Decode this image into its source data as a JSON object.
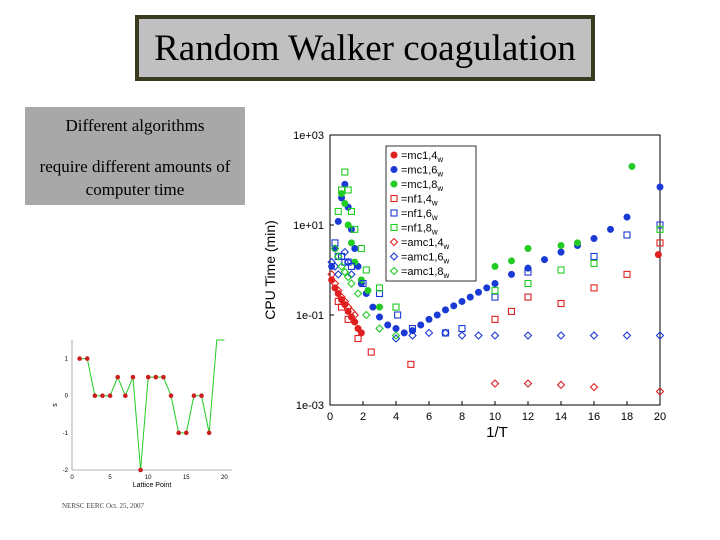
{
  "slide": {
    "title": "Random Walker coagulation",
    "description_line1": "Different algorithms",
    "description_line2": "require different amounts of computer time",
    "footer": "NERSC EERC Oct. 25, 2007"
  },
  "chart_data": [
    {
      "type": "scatter",
      "xlabel": "1/T",
      "ylabel": "CPU Time (min)",
      "xlim": [
        0,
        20
      ],
      "ylim": [
        0.001,
        1000
      ],
      "yscale": "log",
      "x_ticks": [
        "0",
        "2",
        "4",
        "6",
        "8",
        "10",
        "12",
        "14",
        "16",
        "18",
        "20"
      ],
      "y_ticks": [
        "1e-03",
        "1e-01",
        "1e+01",
        "1e+03"
      ],
      "legend_position": "top-right",
      "series": [
        {
          "name": "=mc1,4w",
          "marker": "filled-circle",
          "color": "#e02020",
          "points": [
            [
              0.1,
              0.6
            ],
            [
              0.3,
              0.4
            ],
            [
              0.5,
              0.3
            ],
            [
              0.7,
              0.22
            ],
            [
              0.9,
              0.17
            ],
            [
              1.1,
              0.12
            ],
            [
              1.3,
              0.09
            ],
            [
              1.5,
              0.07
            ],
            [
              1.7,
              0.05
            ],
            [
              1.9,
              0.04
            ],
            [
              19.9,
              2.2
            ]
          ]
        },
        {
          "name": "=mc1,6w",
          "marker": "filled-circle",
          "color": "#1a3ad6",
          "points": [
            [
              0.1,
              1.2
            ],
            [
              0.3,
              3
            ],
            [
              0.5,
              12
            ],
            [
              0.7,
              40
            ],
            [
              0.9,
              80
            ],
            [
              1.1,
              25
            ],
            [
              1.3,
              8
            ],
            [
              1.5,
              3
            ],
            [
              1.7,
              1.2
            ],
            [
              1.9,
              0.5
            ],
            [
              2.2,
              0.3
            ],
            [
              2.6,
              0.15
            ],
            [
              3,
              0.09
            ],
            [
              3.5,
              0.06
            ],
            [
              4,
              0.05
            ],
            [
              4.5,
              0.04
            ],
            [
              5,
              0.045
            ],
            [
              5.5,
              0.06
            ],
            [
              6,
              0.08
            ],
            [
              6.5,
              0.1
            ],
            [
              7,
              0.13
            ],
            [
              7.5,
              0.16
            ],
            [
              8,
              0.2
            ],
            [
              8.5,
              0.25
            ],
            [
              9,
              0.32
            ],
            [
              9.5,
              0.4
            ],
            [
              10,
              0.5
            ],
            [
              11,
              0.8
            ],
            [
              12,
              1.1
            ],
            [
              13,
              1.7
            ],
            [
              14,
              2.5
            ],
            [
              15,
              3.5
            ],
            [
              16,
              5
            ],
            [
              17,
              8
            ],
            [
              18,
              15
            ],
            [
              20,
              70
            ]
          ]
        },
        {
          "name": "=mc1,8w",
          "marker": "filled-circle",
          "color": "#22cc22",
          "points": [
            [
              0.7,
              50
            ],
            [
              0.9,
              30
            ],
            [
              1.1,
              10
            ],
            [
              1.3,
              4
            ],
            [
              1.5,
              1.5
            ],
            [
              1.9,
              0.6
            ],
            [
              2.3,
              0.35
            ],
            [
              3,
              0.15
            ],
            [
              10,
              1.2
            ],
            [
              11,
              1.6
            ],
            [
              12,
              3
            ],
            [
              14,
              3.5
            ],
            [
              15,
              4
            ],
            [
              18.3,
              200
            ]
          ]
        },
        {
          "name": "=nf1,4w",
          "marker": "open-square",
          "color": "#e02020",
          "points": [
            [
              0.5,
              0.2
            ],
            [
              0.7,
              0.15
            ],
            [
              1.1,
              0.08
            ],
            [
              1.7,
              0.03
            ],
            [
              2.5,
              0.015
            ],
            [
              4.9,
              0.008
            ],
            [
              10,
              0.08
            ],
            [
              11,
              0.12
            ],
            [
              12,
              0.25
            ],
            [
              14,
              0.18
            ],
            [
              16,
              0.4
            ],
            [
              18,
              0.8
            ],
            [
              20,
              4
            ]
          ]
        },
        {
          "name": "=nf1,6w",
          "marker": "open-square",
          "color": "#1a3ad6",
          "points": [
            [
              0.3,
              4
            ],
            [
              0.5,
              2
            ],
            [
              0.7,
              2
            ],
            [
              0.9,
              1.5
            ],
            [
              1.1,
              1.5
            ],
            [
              1.3,
              1.2
            ],
            [
              2,
              0.5
            ],
            [
              3,
              0.3
            ],
            [
              4.1,
              0.1
            ],
            [
              5,
              0.05
            ],
            [
              7,
              0.04
            ],
            [
              8,
              0.05
            ],
            [
              10,
              0.25
            ],
            [
              12,
              0.9
            ],
            [
              16,
              2
            ],
            [
              18,
              6
            ],
            [
              20,
              10
            ]
          ]
        },
        {
          "name": "=nf1,8w",
          "marker": "open-square",
          "color": "#22cc22",
          "points": [
            [
              0.5,
              20
            ],
            [
              0.7,
              60
            ],
            [
              0.9,
              150
            ],
            [
              1.1,
              60
            ],
            [
              1.3,
              20
            ],
            [
              1.5,
              8
            ],
            [
              1.9,
              3
            ],
            [
              2.2,
              1
            ],
            [
              3,
              0.4
            ],
            [
              4,
              0.15
            ],
            [
              10,
              0.35
            ],
            [
              12,
              0.5
            ],
            [
              14,
              1
            ],
            [
              16,
              1.4
            ],
            [
              20,
              8
            ]
          ]
        },
        {
          "name": "=amc1,4w",
          "marker": "open-diamond",
          "color": "#e02020",
          "points": [
            [
              0.1,
              0.8
            ],
            [
              0.3,
              0.5
            ],
            [
              0.5,
              0.35
            ],
            [
              0.7,
              0.25
            ],
            [
              0.9,
              0.2
            ],
            [
              1.1,
              0.15
            ],
            [
              1.3,
              0.12
            ],
            [
              1.5,
              0.1
            ],
            [
              10,
              0.003
            ],
            [
              12,
              0.003
            ],
            [
              14,
              0.0028
            ],
            [
              16,
              0.0025
            ],
            [
              20,
              0.002
            ]
          ]
        },
        {
          "name": "=amc1,6w",
          "marker": "open-diamond",
          "color": "#1a3ad6",
          "points": [
            [
              0.1,
              1.5
            ],
            [
              0.3,
              1.2
            ],
            [
              0.5,
              0.8
            ],
            [
              0.9,
              2.5
            ],
            [
              1.1,
              1.5
            ],
            [
              1.3,
              0.8
            ],
            [
              4,
              0.03
            ],
            [
              5,
              0.035
            ],
            [
              6,
              0.04
            ],
            [
              7,
              0.04
            ],
            [
              8,
              0.035
            ],
            [
              9,
              0.035
            ],
            [
              10,
              0.035
            ],
            [
              12,
              0.035
            ],
            [
              14,
              0.035
            ],
            [
              16,
              0.035
            ],
            [
              18,
              0.035
            ],
            [
              20,
              0.035
            ]
          ]
        },
        {
          "name": "=amc1,8w",
          "marker": "open-diamond",
          "color": "#22cc22",
          "points": [
            [
              0.3,
              3
            ],
            [
              0.5,
              2
            ],
            [
              0.7,
              1.2
            ],
            [
              0.9,
              0.9
            ],
            [
              1.1,
              0.7
            ],
            [
              1.3,
              0.5
            ],
            [
              1.7,
              0.3
            ],
            [
              2.2,
              0.1
            ],
            [
              3,
              0.05
            ],
            [
              4,
              0.035
            ]
          ]
        }
      ]
    },
    {
      "type": "line",
      "xlabel": "Lattice Point",
      "ylabel": "s",
      "xlim": [
        0,
        21
      ],
      "ylim": [
        -2,
        1.5
      ],
      "x_ticks": [
        "0",
        "5",
        "10",
        "15",
        "20"
      ],
      "y_ticks": [
        "1",
        "0",
        "-1",
        "-2"
      ],
      "color": "#22cc22",
      "marker_color": "#cc1e1e",
      "x": [
        1,
        2,
        3,
        4,
        5,
        6,
        7,
        8,
        9,
        10,
        11,
        12,
        13,
        14,
        15,
        16,
        17,
        18,
        19,
        20
      ],
      "values": [
        1,
        1,
        0,
        0,
        0,
        0.5,
        0,
        0.5,
        -2,
        0.5,
        0.5,
        0.5,
        0,
        -1,
        -1,
        0,
        0,
        -1,
        1.5,
        1.5
      ]
    }
  ]
}
